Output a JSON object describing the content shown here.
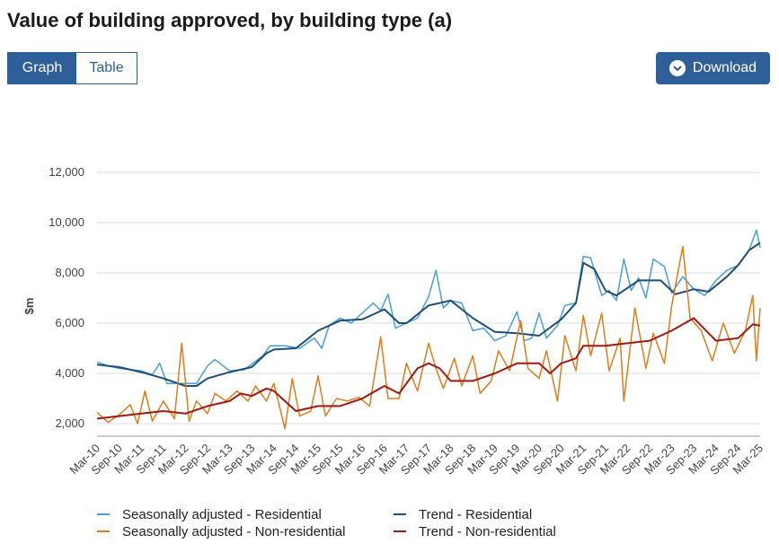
{
  "header": {
    "title": "Value of building approved, by building type (a)"
  },
  "toolbar": {
    "graph_label": "Graph",
    "table_label": "Table",
    "download_label": "Download"
  },
  "chart_data": {
    "type": "line",
    "title": "Value of building approved, by building type (a)",
    "ylabel": "$m",
    "xlabel": "",
    "ylim": [
      1500,
      12000
    ],
    "yticks": [
      2000,
      4000,
      6000,
      8000,
      10000,
      12000
    ],
    "ytick_labels": [
      "2,000",
      "4,000",
      "6,000",
      "8,000",
      "10,000",
      "12,000"
    ],
    "x_start": "Mar-10",
    "x_end": "Mar-25",
    "x_tick_labels": [
      "Mar-10",
      "Sep-10",
      "Mar-11",
      "Sep-11",
      "Mar-12",
      "Sep-12",
      "Mar-13",
      "Sep-13",
      "Mar-14",
      "Sep-14",
      "Mar-15",
      "Sep-15",
      "Mar-16",
      "Sep-16",
      "Mar-17",
      "Sep-17",
      "Mar-18",
      "Sep-18",
      "Mar-19",
      "Sep-19",
      "Mar-20",
      "Sep-20",
      "Mar-21",
      "Sep-21",
      "Mar-22",
      "Sep-22",
      "Mar-23",
      "Sep-23",
      "Mar-24",
      "Sep-24",
      "Mar-25"
    ],
    "grid": true,
    "legend_position": "bottom",
    "series": [
      {
        "name": "Seasonally adjusted - Residential",
        "color": "#4a9fd5",
        "points": [
          [
            "Mar-10",
            4450
          ],
          [
            "Jun-10",
            4300
          ],
          [
            "Sep-10",
            4200
          ],
          [
            "Dec-10",
            4150
          ],
          [
            "Mar-11",
            4100
          ],
          [
            "Jun-11",
            3950
          ],
          [
            "Aug-11",
            4400
          ],
          [
            "Oct-11",
            3600
          ],
          [
            "Jan-12",
            3600
          ],
          [
            "Jun-12",
            3600
          ],
          [
            "Sep-12",
            4300
          ],
          [
            "Nov-12",
            4550
          ],
          [
            "Mar-13",
            4100
          ],
          [
            "Jul-13",
            4150
          ],
          [
            "Dec-13",
            4700
          ],
          [
            "Feb-14",
            5100
          ],
          [
            "Jun-14",
            5100
          ],
          [
            "Oct-14",
            5000
          ],
          [
            "Feb-15",
            5400
          ],
          [
            "Apr-15",
            5000
          ],
          [
            "Jun-15",
            5900
          ],
          [
            "Sep-15",
            6200
          ],
          [
            "Dec-15",
            6000
          ],
          [
            "Mar-16",
            6400
          ],
          [
            "Jun-16",
            6800
          ],
          [
            "Aug-16",
            6500
          ],
          [
            "Oct-16",
            7150
          ],
          [
            "Dec-16",
            5800
          ],
          [
            "Mar-17",
            6000
          ],
          [
            "Jun-17",
            6200
          ],
          [
            "Sep-17",
            7050
          ],
          [
            "Nov-17",
            8100
          ],
          [
            "Jan-18",
            6600
          ],
          [
            "Mar-18",
            6900
          ],
          [
            "Jun-18",
            6800
          ],
          [
            "Sep-18",
            5700
          ],
          [
            "Dec-18",
            5800
          ],
          [
            "Mar-19",
            5300
          ],
          [
            "Jun-19",
            5500
          ],
          [
            "Sep-19",
            6450
          ],
          [
            "Nov-19",
            5300
          ],
          [
            "Jan-20",
            5400
          ],
          [
            "Mar-20",
            6400
          ],
          [
            "May-20",
            5400
          ],
          [
            "Aug-20",
            5900
          ],
          [
            "Oct-20",
            6700
          ],
          [
            "Jan-21",
            6800
          ],
          [
            "Mar-21",
            8650
          ],
          [
            "May-21",
            8600
          ],
          [
            "Aug-21",
            7100
          ],
          [
            "Oct-21",
            7300
          ],
          [
            "Dec-21",
            6900
          ],
          [
            "Feb-22",
            8550
          ],
          [
            "Apr-22",
            7300
          ],
          [
            "Jun-22",
            7800
          ],
          [
            "Aug-22",
            7000
          ],
          [
            "Oct-22",
            8550
          ],
          [
            "Jan-23",
            8250
          ],
          [
            "Mar-23",
            7200
          ],
          [
            "Jun-23",
            7850
          ],
          [
            "Sep-23",
            7350
          ],
          [
            "Dec-23",
            7100
          ],
          [
            "Mar-24",
            7700
          ],
          [
            "Jun-24",
            8100
          ],
          [
            "Sep-24",
            8300
          ],
          [
            "Dec-24",
            8900
          ],
          [
            "Feb-25",
            9700
          ],
          [
            "Mar-25",
            9000
          ]
        ]
      },
      {
        "name": "Trend - Residential",
        "color": "#1d4f7a",
        "points": [
          [
            "Mar-10",
            4350
          ],
          [
            "Sep-10",
            4250
          ],
          [
            "Mar-11",
            4050
          ],
          [
            "Sep-11",
            3800
          ],
          [
            "Mar-12",
            3500
          ],
          [
            "Jun-12",
            3500
          ],
          [
            "Sep-12",
            3800
          ],
          [
            "Mar-13",
            4050
          ],
          [
            "Sep-13",
            4250
          ],
          [
            "Jan-14",
            4800
          ],
          [
            "Mar-14",
            4950
          ],
          [
            "Sep-14",
            5000
          ],
          [
            "Mar-15",
            5700
          ],
          [
            "Sep-15",
            6100
          ],
          [
            "Mar-16",
            6150
          ],
          [
            "Sep-16",
            6550
          ],
          [
            "Jan-17",
            6000
          ],
          [
            "Mar-17",
            6000
          ],
          [
            "Sep-17",
            6700
          ],
          [
            "Mar-18",
            6900
          ],
          [
            "Sep-18",
            6200
          ],
          [
            "Mar-19",
            5650
          ],
          [
            "Sep-19",
            5600
          ],
          [
            "Mar-20",
            5500
          ],
          [
            "Sep-20",
            6150
          ],
          [
            "Jan-21",
            6800
          ],
          [
            "Mar-21",
            8400
          ],
          [
            "Jun-21",
            8150
          ],
          [
            "Sep-21",
            7300
          ],
          [
            "Dec-21",
            7100
          ],
          [
            "Jun-22",
            7700
          ],
          [
            "Dec-22",
            7700
          ],
          [
            "Apr-23",
            7150
          ],
          [
            "Sep-23",
            7350
          ],
          [
            "Jan-24",
            7250
          ],
          [
            "Jun-24",
            7850
          ],
          [
            "Sep-24",
            8300
          ],
          [
            "Dec-24",
            8900
          ],
          [
            "Mar-25",
            9200
          ]
        ]
      },
      {
        "name": "Seasonally adjusted - Non-residential",
        "color": "#e07c1a",
        "points": [
          [
            "Mar-10",
            2450
          ],
          [
            "Jun-10",
            2050
          ],
          [
            "Sep-10",
            2350
          ],
          [
            "Dec-10",
            2750
          ],
          [
            "Feb-11",
            2000
          ],
          [
            "Apr-11",
            3300
          ],
          [
            "Jun-11",
            2100
          ],
          [
            "Sep-11",
            2900
          ],
          [
            "Dec-11",
            2200
          ],
          [
            "Feb-12",
            5200
          ],
          [
            "Apr-12",
            2100
          ],
          [
            "Jun-12",
            2900
          ],
          [
            "Sep-12",
            2400
          ],
          [
            "Nov-12",
            3200
          ],
          [
            "Feb-13",
            2900
          ],
          [
            "May-13",
            3300
          ],
          [
            "Aug-13",
            2900
          ],
          [
            "Oct-13",
            3500
          ],
          [
            "Jan-14",
            2900
          ],
          [
            "Mar-14",
            3600
          ],
          [
            "Jun-14",
            1800
          ],
          [
            "Aug-14",
            3800
          ],
          [
            "Oct-14",
            2300
          ],
          [
            "Jan-15",
            2500
          ],
          [
            "Mar-15",
            3900
          ],
          [
            "May-15",
            2300
          ],
          [
            "Aug-15",
            3000
          ],
          [
            "Nov-15",
            2900
          ],
          [
            "Feb-16",
            3050
          ],
          [
            "May-16",
            2700
          ],
          [
            "Aug-16",
            5450
          ],
          [
            "Oct-16",
            3000
          ],
          [
            "Jan-17",
            3000
          ],
          [
            "Mar-17",
            4400
          ],
          [
            "Jun-17",
            3300
          ],
          [
            "Sep-17",
            5200
          ],
          [
            "Nov-17",
            4200
          ],
          [
            "Jan-18",
            3400
          ],
          [
            "Apr-18",
            4600
          ],
          [
            "Jun-18",
            3500
          ],
          [
            "Sep-18",
            4700
          ],
          [
            "Nov-18",
            3200
          ],
          [
            "Feb-19",
            3700
          ],
          [
            "Apr-19",
            4900
          ],
          [
            "Jul-19",
            4100
          ],
          [
            "Oct-19",
            6100
          ],
          [
            "Dec-19",
            4200
          ],
          [
            "Mar-20",
            3800
          ],
          [
            "May-20",
            4900
          ],
          [
            "Aug-20",
            2900
          ],
          [
            "Oct-20",
            5500
          ],
          [
            "Jan-21",
            4100
          ],
          [
            "Mar-21",
            6300
          ],
          [
            "May-21",
            4700
          ],
          [
            "Aug-21",
            6400
          ],
          [
            "Oct-21",
            4100
          ],
          [
            "Jan-22",
            5400
          ],
          [
            "Feb-22",
            2900
          ],
          [
            "May-22",
            6600
          ],
          [
            "Aug-22",
            4200
          ],
          [
            "Oct-22",
            5600
          ],
          [
            "Jan-23",
            4400
          ],
          [
            "Mar-23",
            6700
          ],
          [
            "Jun-23",
            9050
          ],
          [
            "Aug-23",
            6200
          ],
          [
            "Nov-23",
            5700
          ],
          [
            "Feb-24",
            4500
          ],
          [
            "May-24",
            6000
          ],
          [
            "Aug-24",
            4800
          ],
          [
            "Nov-24",
            5700
          ],
          [
            "Jan-25",
            7100
          ],
          [
            "Feb-25",
            4500
          ],
          [
            "Mar-25",
            6600
          ]
        ]
      },
      {
        "name": "Trend - Non-residential",
        "color": "#a01a14",
        "points": [
          [
            "Mar-10",
            2200
          ],
          [
            "Sep-10",
            2300
          ],
          [
            "Mar-11",
            2400
          ],
          [
            "Sep-11",
            2500
          ],
          [
            "Mar-12",
            2400
          ],
          [
            "Sep-12",
            2700
          ],
          [
            "Mar-13",
            2900
          ],
          [
            "Jun-13",
            3200
          ],
          [
            "Sep-13",
            3100
          ],
          [
            "Jan-14",
            3400
          ],
          [
            "Mar-14",
            3300
          ],
          [
            "Sep-14",
            2500
          ],
          [
            "Mar-15",
            2700
          ],
          [
            "Sep-15",
            2700
          ],
          [
            "Mar-16",
            3000
          ],
          [
            "Sep-16",
            3500
          ],
          [
            "Jan-17",
            3200
          ],
          [
            "Jun-17",
            4200
          ],
          [
            "Sep-17",
            4400
          ],
          [
            "Dec-17",
            4200
          ],
          [
            "Mar-18",
            3700
          ],
          [
            "Sep-18",
            3700
          ],
          [
            "Mar-19",
            4000
          ],
          [
            "Sep-19",
            4400
          ],
          [
            "Mar-20",
            4400
          ],
          [
            "Jun-20",
            4000
          ],
          [
            "Sep-20",
            4400
          ],
          [
            "Jan-21",
            4600
          ],
          [
            "Mar-21",
            5100
          ],
          [
            "Sep-21",
            5100
          ],
          [
            "Mar-22",
            5200
          ],
          [
            "Sep-22",
            5300
          ],
          [
            "Mar-23",
            5700
          ],
          [
            "Sep-23",
            6200
          ],
          [
            "Mar-24",
            5300
          ],
          [
            "Sep-24",
            5400
          ],
          [
            "Jan-25",
            5950
          ],
          [
            "Mar-25",
            5900
          ]
        ]
      }
    ]
  }
}
